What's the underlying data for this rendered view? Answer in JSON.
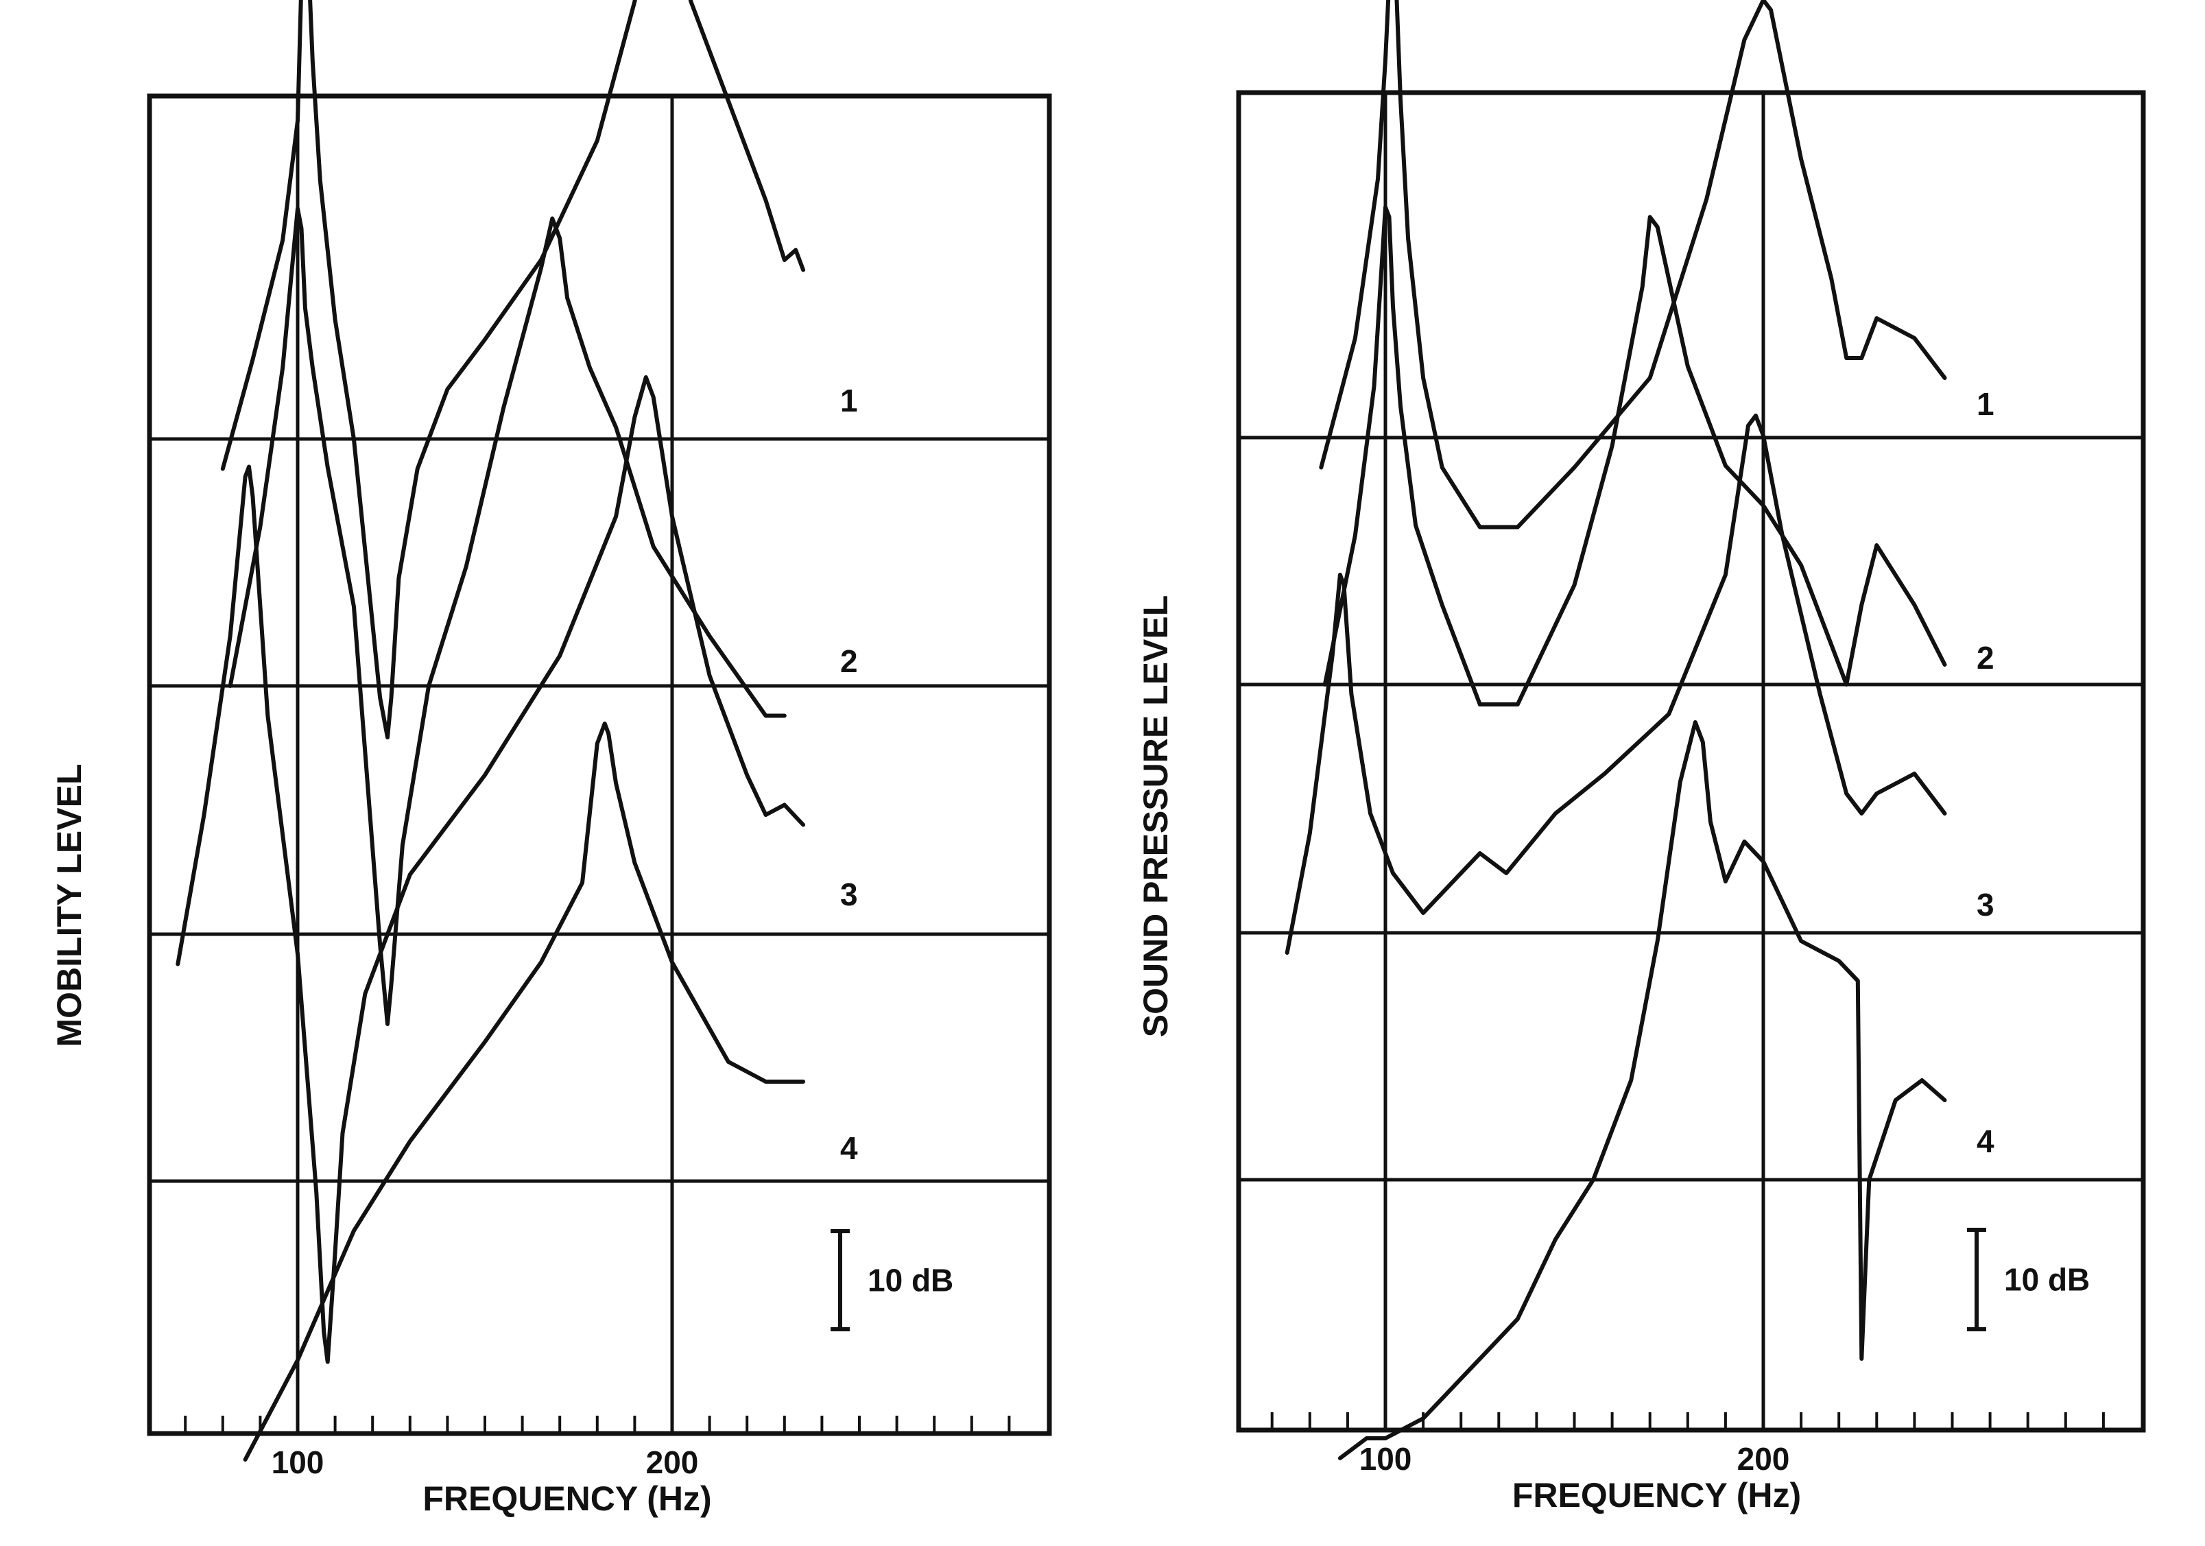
{
  "chart_data": [
    {
      "type": "line",
      "title": "",
      "xlabel": "FREQUENCY (Hz)",
      "ylabel": "MOBILITY  LEVEL",
      "xlim": [
        60,
        300
      ],
      "x_tick_labels": [
        "100",
        "200"
      ],
      "grid": true,
      "scale_bar_label": "10 dB",
      "series": [
        {
          "name": "1",
          "x": [
            80,
            88,
            96,
            100,
            101,
            102,
            103,
            104,
            106,
            110,
            115,
            122,
            124,
            125,
            127,
            132,
            140,
            150,
            165,
            180,
            190,
            195,
            197,
            200,
            205,
            215,
            225,
            230,
            233,
            235
          ],
          "y": [
            -3,
            8,
            20,
            32,
            46,
            50,
            47,
            38,
            26,
            12,
            0,
            -26,
            -30,
            -26,
            -14,
            -3,
            5,
            10,
            18,
            30,
            44,
            55,
            56,
            52,
            44,
            34,
            24,
            18,
            19,
            17
          ]
        },
        {
          "name": "2",
          "x": [
            82,
            90,
            96,
            99,
            100,
            101,
            102,
            104,
            108,
            115,
            122,
            124,
            125,
            128,
            135,
            145,
            155,
            165,
            168,
            170,
            172,
            178,
            185,
            195,
            210,
            225,
            230
          ],
          "y": [
            0,
            16,
            32,
            44,
            48,
            46,
            38,
            32,
            22,
            8,
            -26,
            -34,
            -30,
            -16,
            0,
            12,
            28,
            42,
            47,
            45,
            39,
            32,
            26,
            14,
            5,
            -3,
            -3
          ]
        },
        {
          "name": "3",
          "x": [
            68,
            75,
            82,
            86,
            87,
            88,
            92,
            100,
            105,
            107,
            108,
            110,
            112,
            118,
            130,
            150,
            170,
            185,
            190,
            193,
            195,
            200,
            210,
            220,
            225,
            230,
            235
          ],
          "y": [
            -3,
            12,
            30,
            46,
            47,
            44,
            22,
            -2,
            -26,
            -40,
            -43,
            -32,
            -20,
            -6,
            6,
            16,
            28,
            42,
            52,
            56,
            54,
            42,
            26,
            16,
            12,
            13,
            11
          ]
        },
        {
          "name": "4",
          "x": [
            86,
            100,
            115,
            130,
            150,
            165,
            176,
            180,
            182,
            183,
            185,
            190,
            200,
            215,
            225,
            235
          ],
          "y": [
            -28,
            -18,
            -5,
            4,
            14,
            22,
            30,
            44,
            46,
            45,
            40,
            32,
            22,
            12,
            10,
            10
          ]
        }
      ]
    },
    {
      "type": "line",
      "title": "",
      "xlabel": "FREQUENCY (Hz)",
      "ylabel": "SOUND PRESSURE LEVEL",
      "xlim": [
        60,
        300
      ],
      "x_tick_labels": [
        "100",
        "200"
      ],
      "grid": true,
      "scale_bar_label": "10 dB",
      "series": [
        {
          "name": "1",
          "x": [
            83,
            92,
            98,
            100,
            101,
            102,
            103,
            104,
            106,
            110,
            115,
            125,
            135,
            150,
            170,
            185,
            195,
            200,
            202,
            210,
            218,
            222,
            226,
            230,
            240,
            248
          ],
          "y": [
            -3,
            10,
            26,
            38,
            46,
            48,
            44,
            34,
            20,
            6,
            -3,
            -9,
            -9,
            -3,
            6,
            24,
            40,
            44,
            43,
            28,
            16,
            8,
            8,
            12,
            10,
            6
          ]
        },
        {
          "name": "2",
          "x": [
            84,
            92,
            97,
            99,
            100,
            101,
            102,
            104,
            108,
            115,
            125,
            135,
            150,
            160,
            168,
            170,
            172,
            180,
            190,
            200,
            210,
            218,
            222,
            226,
            230,
            240,
            248
          ],
          "y": [
            0,
            15,
            30,
            42,
            48,
            47,
            38,
            28,
            16,
            8,
            -2,
            -2,
            10,
            24,
            40,
            47,
            46,
            32,
            22,
            18,
            12,
            4,
            0,
            8,
            14,
            8,
            2
          ]
        },
        {
          "name": "3",
          "x": [
            74,
            80,
            86,
            88,
            89,
            91,
            96,
            102,
            110,
            115,
            120,
            125,
            132,
            145,
            158,
            175,
            190,
            196,
            198,
            200,
            205,
            215,
            222,
            226,
            230,
            240,
            248
          ],
          "y": [
            -2,
            10,
            28,
            36,
            35,
            24,
            12,
            6,
            2,
            4,
            6,
            8,
            6,
            12,
            16,
            22,
            36,
            51,
            52,
            50,
            40,
            24,
            14,
            12,
            14,
            16,
            12
          ]
        },
        {
          "name": "4",
          "x": [
            88,
            95,
            100,
            105,
            110,
            115,
            120,
            125,
            130,
            135,
            145,
            155,
            165,
            172,
            178,
            182,
            184,
            186,
            190,
            195,
            200,
            205,
            210,
            220,
            225,
            226,
            228,
            235,
            242,
            248
          ],
          "y": [
            -28,
            -26,
            -26,
            -25,
            -24,
            -22,
            -20,
            -18,
            -16,
            -14,
            -6,
            0,
            10,
            24,
            40,
            46,
            44,
            36,
            30,
            34,
            32,
            28,
            24,
            22,
            20,
            -18,
            0,
            8,
            10,
            8
          ]
        }
      ]
    }
  ]
}
